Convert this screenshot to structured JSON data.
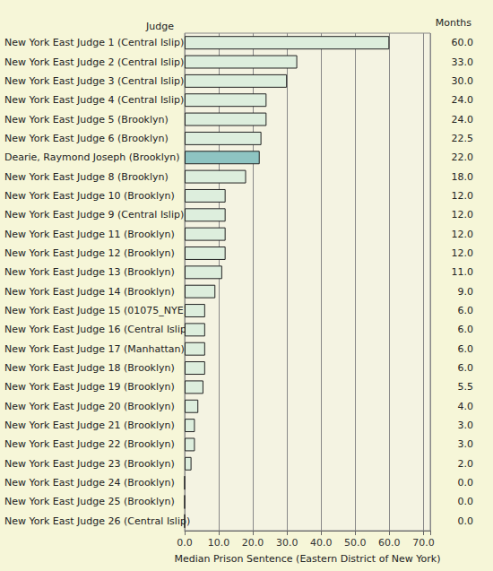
{
  "chart_data": {
    "type": "bar",
    "orientation": "horizontal",
    "x_label": "Median Prison Sentence (Eastern District of New York)",
    "y_label": "Judge",
    "annotations": [
      "Months"
    ],
    "categories": [
      "New York East Judge 1 (Central Islip)",
      "New York East Judge 2 (Central Islip)",
      "New York East Judge 3 (Central Islip)",
      "New York East Judge 4 (Central Islip)",
      "New York East Judge 5 (Brooklyn)",
      "New York East Judge 6 (Brooklyn)",
      "Dearie, Raymond Joseph (Brooklyn)",
      "New York East Judge 8 (Brooklyn)",
      "New York East Judge 10 (Brooklyn)",
      "New York East Judge 9 (Central Islip)",
      "New York East Judge 11 (Brooklyn)",
      "New York East Judge 12 (Brooklyn)",
      "New York East Judge 13 (Brooklyn)",
      "New York East Judge 14 (Brooklyn)",
      "New York East Judge 15 (01075_NYE)",
      "New York East Judge 16 (Central Islip)",
      "New York East Judge 17 (Manhattan)",
      "New York East Judge 18 (Brooklyn)",
      "New York East Judge 19 (Brooklyn)",
      "New York East Judge 20 (Brooklyn)",
      "New York East Judge 21 (Brooklyn)",
      "New York East Judge 22 (Brooklyn)",
      "New York East Judge 23 (Brooklyn)",
      "New York East Judge 24 (Brooklyn)",
      "New York East Judge 25 (Brooklyn)",
      "New York East Judge 26 (Central Islip)"
    ],
    "values": [
      60,
      33,
      30,
      24,
      24,
      22.5,
      22,
      18,
      12,
      12,
      12,
      12,
      11,
      9,
      6,
      6,
      6,
      6,
      5.5,
      4,
      3,
      3,
      2,
      0,
      0,
      0
    ],
    "value_labels": [
      "60.0",
      "33.0",
      "30.0",
      "24.0",
      "24.0",
      "22.5",
      "22.0",
      "18.0",
      "12.0",
      "12.0",
      "12.0",
      "12.0",
      "11.0",
      "9.0",
      "6.0",
      "6.0",
      "6.0",
      "6.0",
      "5.5",
      "4.0",
      "3.0",
      "3.0",
      "2.0",
      "0.0",
      "0.0",
      "0.0"
    ],
    "colors": [
      "#ddeedd",
      "#ddeedd",
      "#ddeedd",
      "#ddeedd",
      "#ddeedd",
      "#ddeedd",
      "#8ec4c2",
      "#ddeedd",
      "#ddeedd",
      "#ddeedd",
      "#ddeedd",
      "#ddeedd",
      "#ddeedd",
      "#ddeedd",
      "#ddeedd",
      "#ddeedd",
      "#ddeedd",
      "#ddeedd",
      "#ddeedd",
      "#ddeedd",
      "#ddeedd",
      "#ddeedd",
      "#ddeedd",
      "#ddeedd",
      "#ddeedd",
      "#ddeedd"
    ],
    "data_labels": true,
    "xlim": [
      0,
      72
    ],
    "xticks": [
      {
        "value": 0,
        "label": "0.0"
      },
      {
        "value": 10,
        "label": "10.0"
      },
      {
        "value": 20,
        "label": "20.0"
      },
      {
        "value": 30,
        "label": "30.0"
      },
      {
        "value": 40,
        "label": "40.0"
      },
      {
        "value": 50,
        "label": "50.0"
      },
      {
        "value": 60,
        "label": "60.0"
      },
      {
        "value": 70,
        "label": "70.0"
      }
    ],
    "grid": true
  }
}
